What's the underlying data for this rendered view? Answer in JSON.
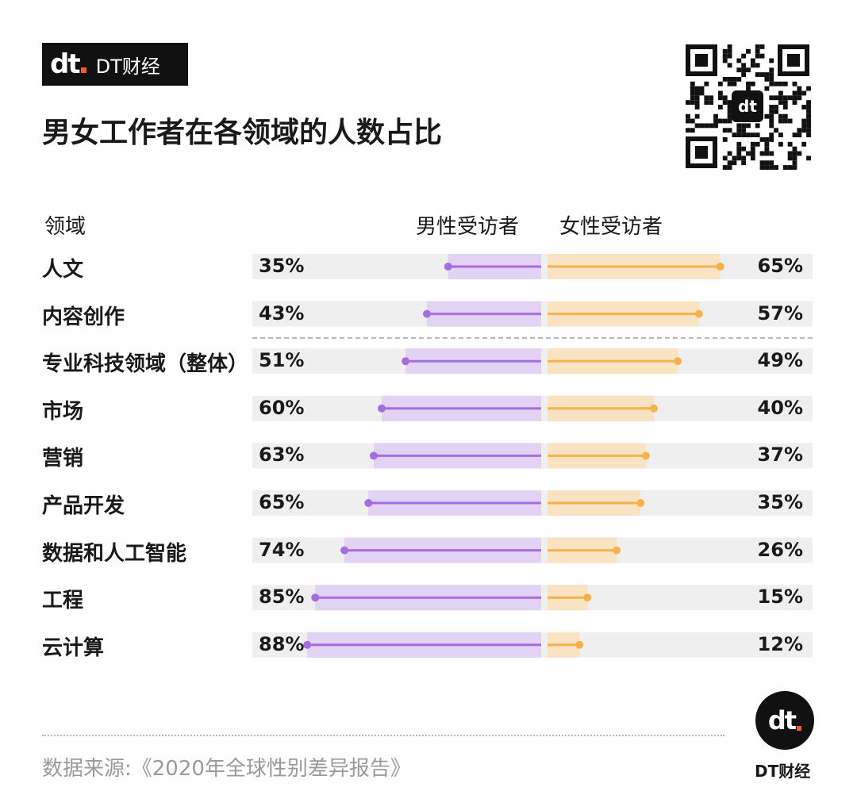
{
  "brand": {
    "logo_text": "dt",
    "name": "DT财经"
  },
  "title": "男女工作者在各领域的人数占比",
  "headers": {
    "field": "领域",
    "male": "男性受访者",
    "female": "女性受访者"
  },
  "source": "数据来源:《2020年全球性别差异报告》",
  "footer_brand": "DT财经",
  "colors": {
    "male": "#a66de0",
    "male_bg": "#e2d2f3",
    "female": "#f6b24a",
    "female_bg": "#f9e3c2",
    "track": "#efefef"
  },
  "chart_data": {
    "type": "bar",
    "categories": [
      "人文",
      "内容创作",
      "专业科技领域（整体）",
      "市场",
      "营销",
      "产品开发",
      "数据和人工智能",
      "工程",
      "云计算"
    ],
    "series": [
      {
        "name": "男性受访者",
        "values": [
          35,
          43,
          51,
          60,
          63,
          65,
          74,
          85,
          88
        ]
      },
      {
        "name": "女性受访者",
        "values": [
          65,
          57,
          49,
          40,
          37,
          35,
          26,
          15,
          12
        ]
      }
    ],
    "male_labels": [
      "35%",
      "43%",
      "51%",
      "60%",
      "63%",
      "65%",
      "74%",
      "85%",
      "88%"
    ],
    "female_labels": [
      "65%",
      "57%",
      "49%",
      "40%",
      "37%",
      "35%",
      "26%",
      "15%",
      "12%"
    ],
    "ylim": [
      0,
      100
    ],
    "separator_after_index": 1
  }
}
